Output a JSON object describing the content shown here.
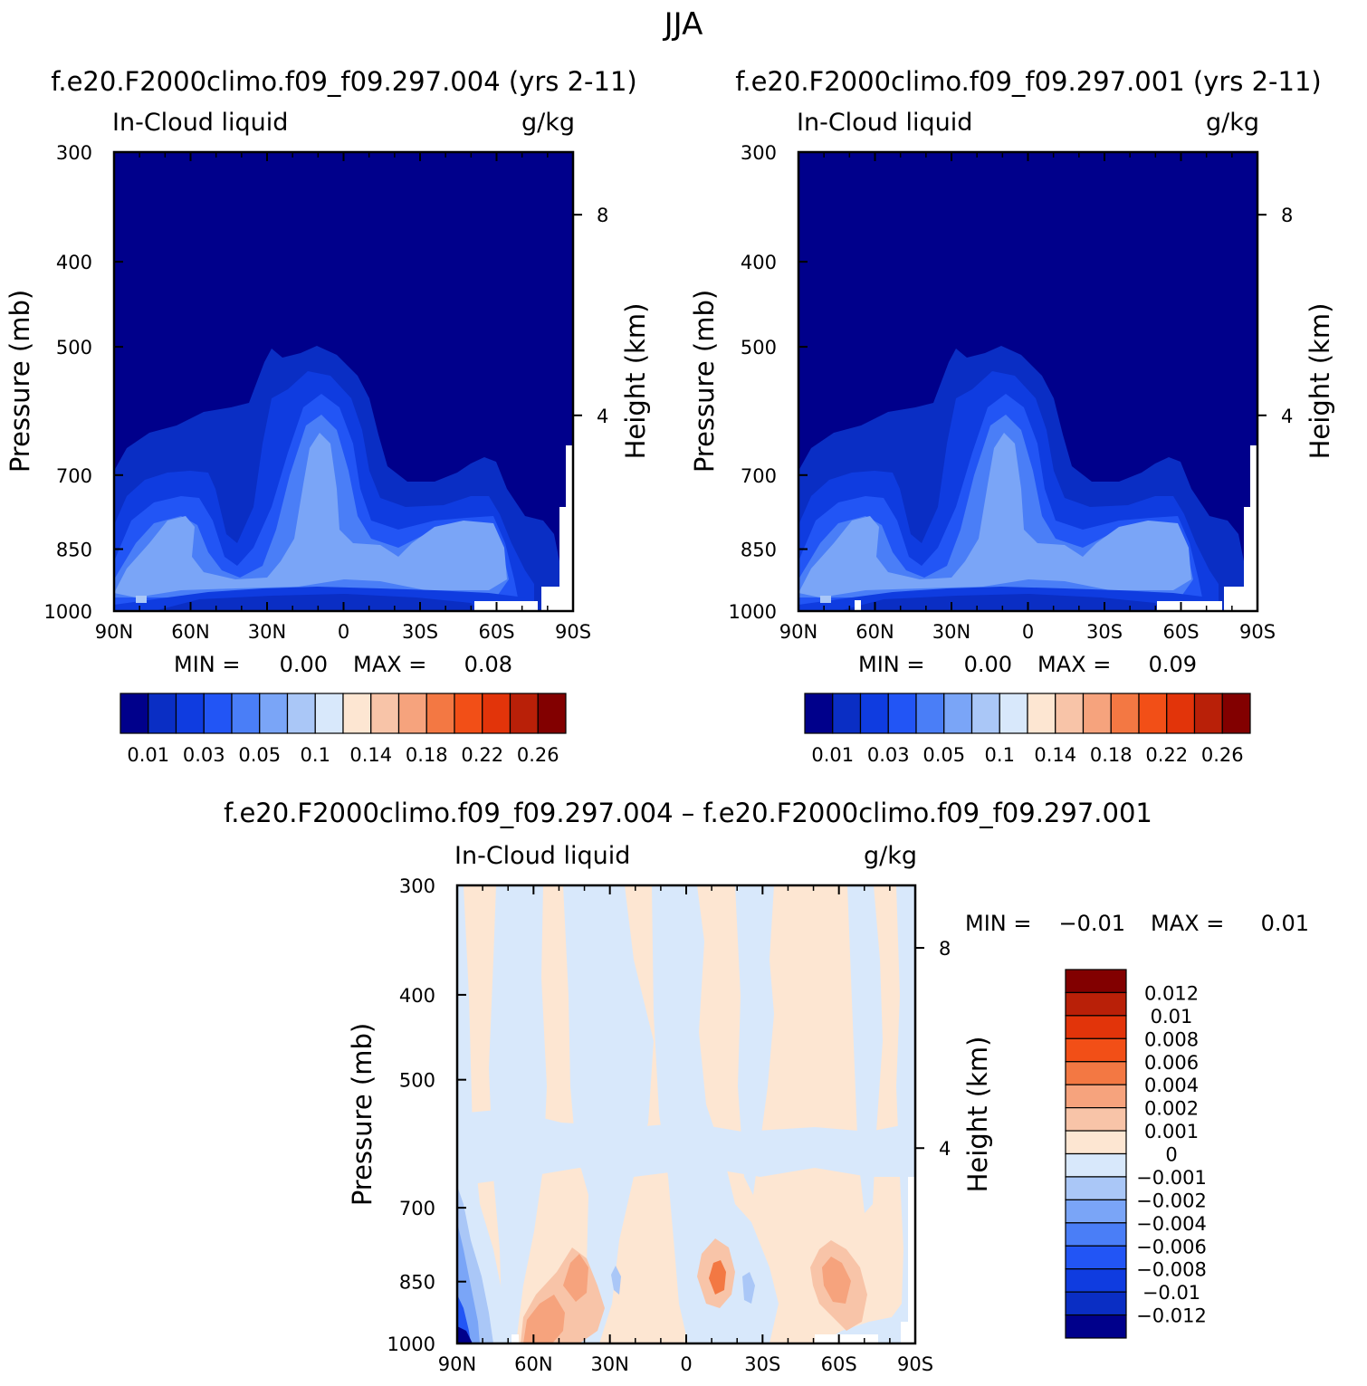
{
  "figure": {
    "season_title": "JJA",
    "case_a_title": "f.e20.F2000climo.f09_f09.297.004 (yrs 2-11)",
    "case_b_title": "f.e20.F2000climo.f09_f09.297.001 (yrs 2-11)",
    "diff_title": "f.e20.F2000climo.f09_f09.297.004 – f.e20.F2000climo.f09_f09.297.001"
  },
  "chart_data": [
    {
      "id": "panel-a",
      "type": "heatmap",
      "variable": "In-Cloud liquid",
      "units": "g/kg",
      "xlabel": "",
      "ylabel": "Pressure (mb)",
      "y2label": "Height (km)",
      "x_ticks": [
        "90N",
        "60N",
        "30N",
        "0",
        "30S",
        "60S",
        "90S"
      ],
      "y_ticks": [
        300,
        400,
        500,
        700,
        850,
        1000
      ],
      "y2_ticks": [
        8,
        4
      ],
      "ylim": [
        1000,
        300
      ],
      "xlim": [
        90,
        -90
      ],
      "stats": {
        "min_label": "MIN =",
        "min": "0.00",
        "max_label": "MAX =",
        "max": "0.08"
      },
      "colorbar_labels": [
        "0.01",
        "0.03",
        "0.05",
        "0.1",
        "0.14",
        "0.18",
        "0.22",
        "0.26"
      ],
      "colorbar_colors": [
        "#00008b",
        "#0a2ec4",
        "#0f3ce0",
        "#2255f5",
        "#4a7ef7",
        "#7aa5f7",
        "#aac7f7",
        "#d8e8fb",
        "#fde6d2",
        "#f8c4a8",
        "#f6a37d",
        "#f37843",
        "#f24f17",
        "#e2340a",
        "#b92008",
        "#820000"
      ]
    },
    {
      "id": "panel-b",
      "type": "heatmap",
      "variable": "In-Cloud liquid",
      "units": "g/kg",
      "xlabel": "",
      "ylabel": "Pressure (mb)",
      "y2label": "Height (km)",
      "x_ticks": [
        "90N",
        "60N",
        "30N",
        "0",
        "30S",
        "60S",
        "90S"
      ],
      "y_ticks": [
        300,
        400,
        500,
        700,
        850,
        1000
      ],
      "y2_ticks": [
        8,
        4
      ],
      "ylim": [
        1000,
        300
      ],
      "xlim": [
        90,
        -90
      ],
      "stats": {
        "min_label": "MIN =",
        "min": "0.00",
        "max_label": "MAX =",
        "max": "0.09"
      },
      "colorbar_labels": [
        "0.01",
        "0.03",
        "0.05",
        "0.1",
        "0.14",
        "0.18",
        "0.22",
        "0.26"
      ],
      "colorbar_colors": [
        "#00008b",
        "#0a2ec4",
        "#0f3ce0",
        "#2255f5",
        "#4a7ef7",
        "#7aa5f7",
        "#aac7f7",
        "#d8e8fb",
        "#fde6d2",
        "#f8c4a8",
        "#f6a37d",
        "#f37843",
        "#f24f17",
        "#e2340a",
        "#b92008",
        "#820000"
      ]
    },
    {
      "id": "panel-diff",
      "type": "heatmap",
      "variable": "In-Cloud liquid",
      "units": "g/kg",
      "xlabel": "",
      "ylabel": "Pressure (mb)",
      "y2label": "Height (km)",
      "x_ticks": [
        "90N",
        "60N",
        "30N",
        "0",
        "30S",
        "60S",
        "90S"
      ],
      "y_ticks": [
        300,
        400,
        500,
        700,
        850,
        1000
      ],
      "y2_ticks": [
        8,
        4
      ],
      "ylim": [
        1000,
        300
      ],
      "xlim": [
        90,
        -90
      ],
      "stats": {
        "min_label": "MIN =",
        "min": "−0.01",
        "max_label": "MAX =",
        "max": "0.01"
      },
      "colorbar_labels": [
        "0.012",
        "0.01",
        "0.008",
        "0.006",
        "0.004",
        "0.002",
        "0.001",
        "0",
        "−0.001",
        "−0.002",
        "−0.004",
        "−0.006",
        "−0.008",
        "−0.01",
        "−0.012"
      ],
      "colorbar_colors": [
        "#820000",
        "#b92008",
        "#e2340a",
        "#f24f17",
        "#f37843",
        "#f6a37d",
        "#f8c4a8",
        "#fde6d2",
        "#d8e8fb",
        "#aac7f7",
        "#7aa5f7",
        "#4a7ef7",
        "#2255f5",
        "#0f3ce0",
        "#0a2ec4",
        "#00008b"
      ]
    }
  ]
}
